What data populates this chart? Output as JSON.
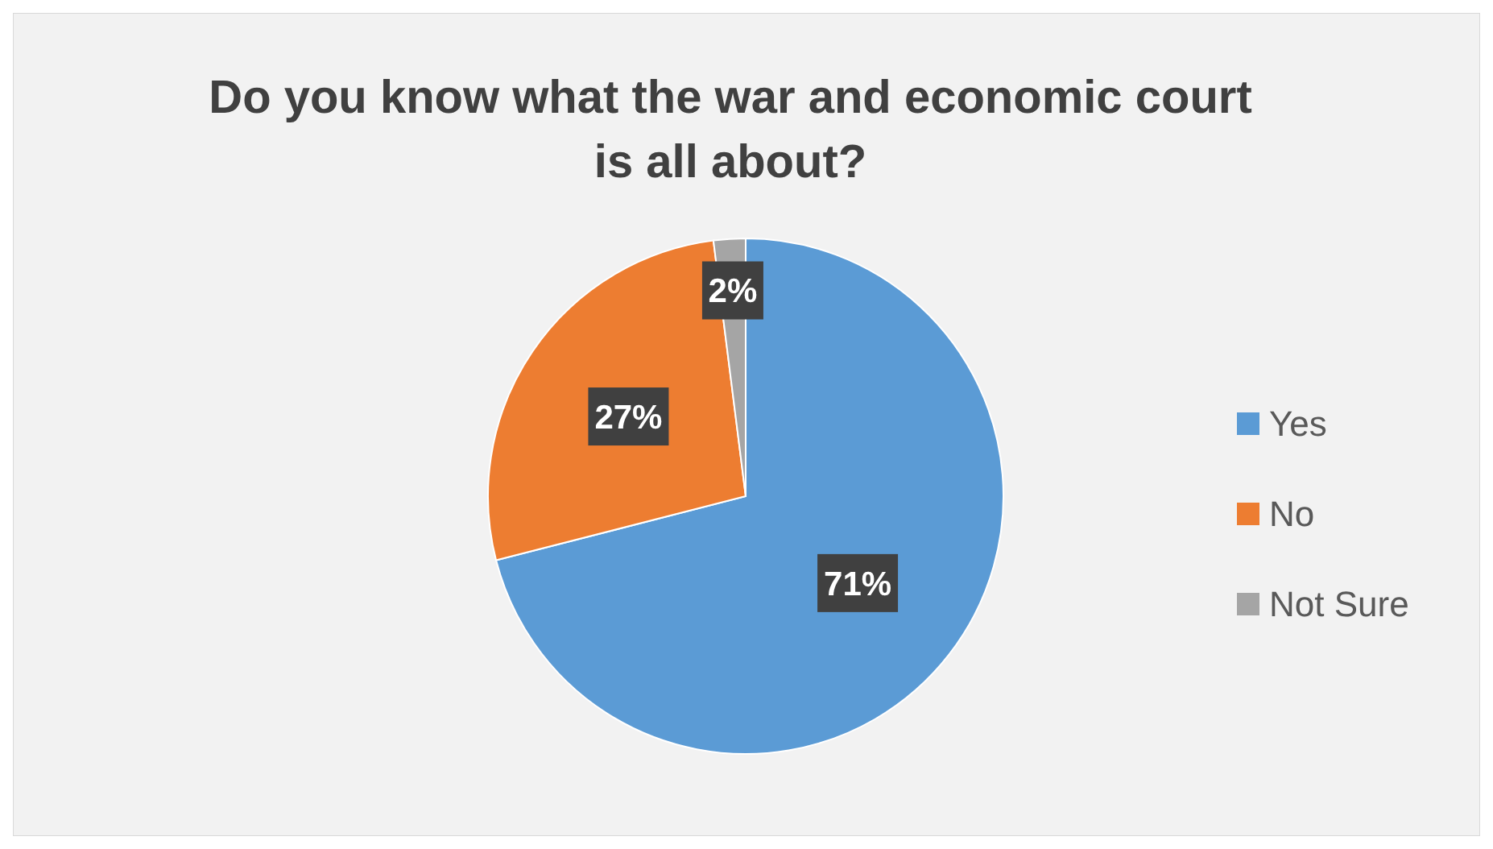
{
  "chart_data": {
    "type": "pie",
    "title": "Do you know what the war and economic court is all about?",
    "categories": [
      "Yes",
      "No",
      "Not Sure"
    ],
    "values": [
      71,
      27,
      2
    ],
    "colors": [
      "#5b9bd5",
      "#ed7d31",
      "#a5a5a5"
    ],
    "value_labels": [
      "71%",
      "27%",
      "2%"
    ],
    "legend": "right"
  }
}
